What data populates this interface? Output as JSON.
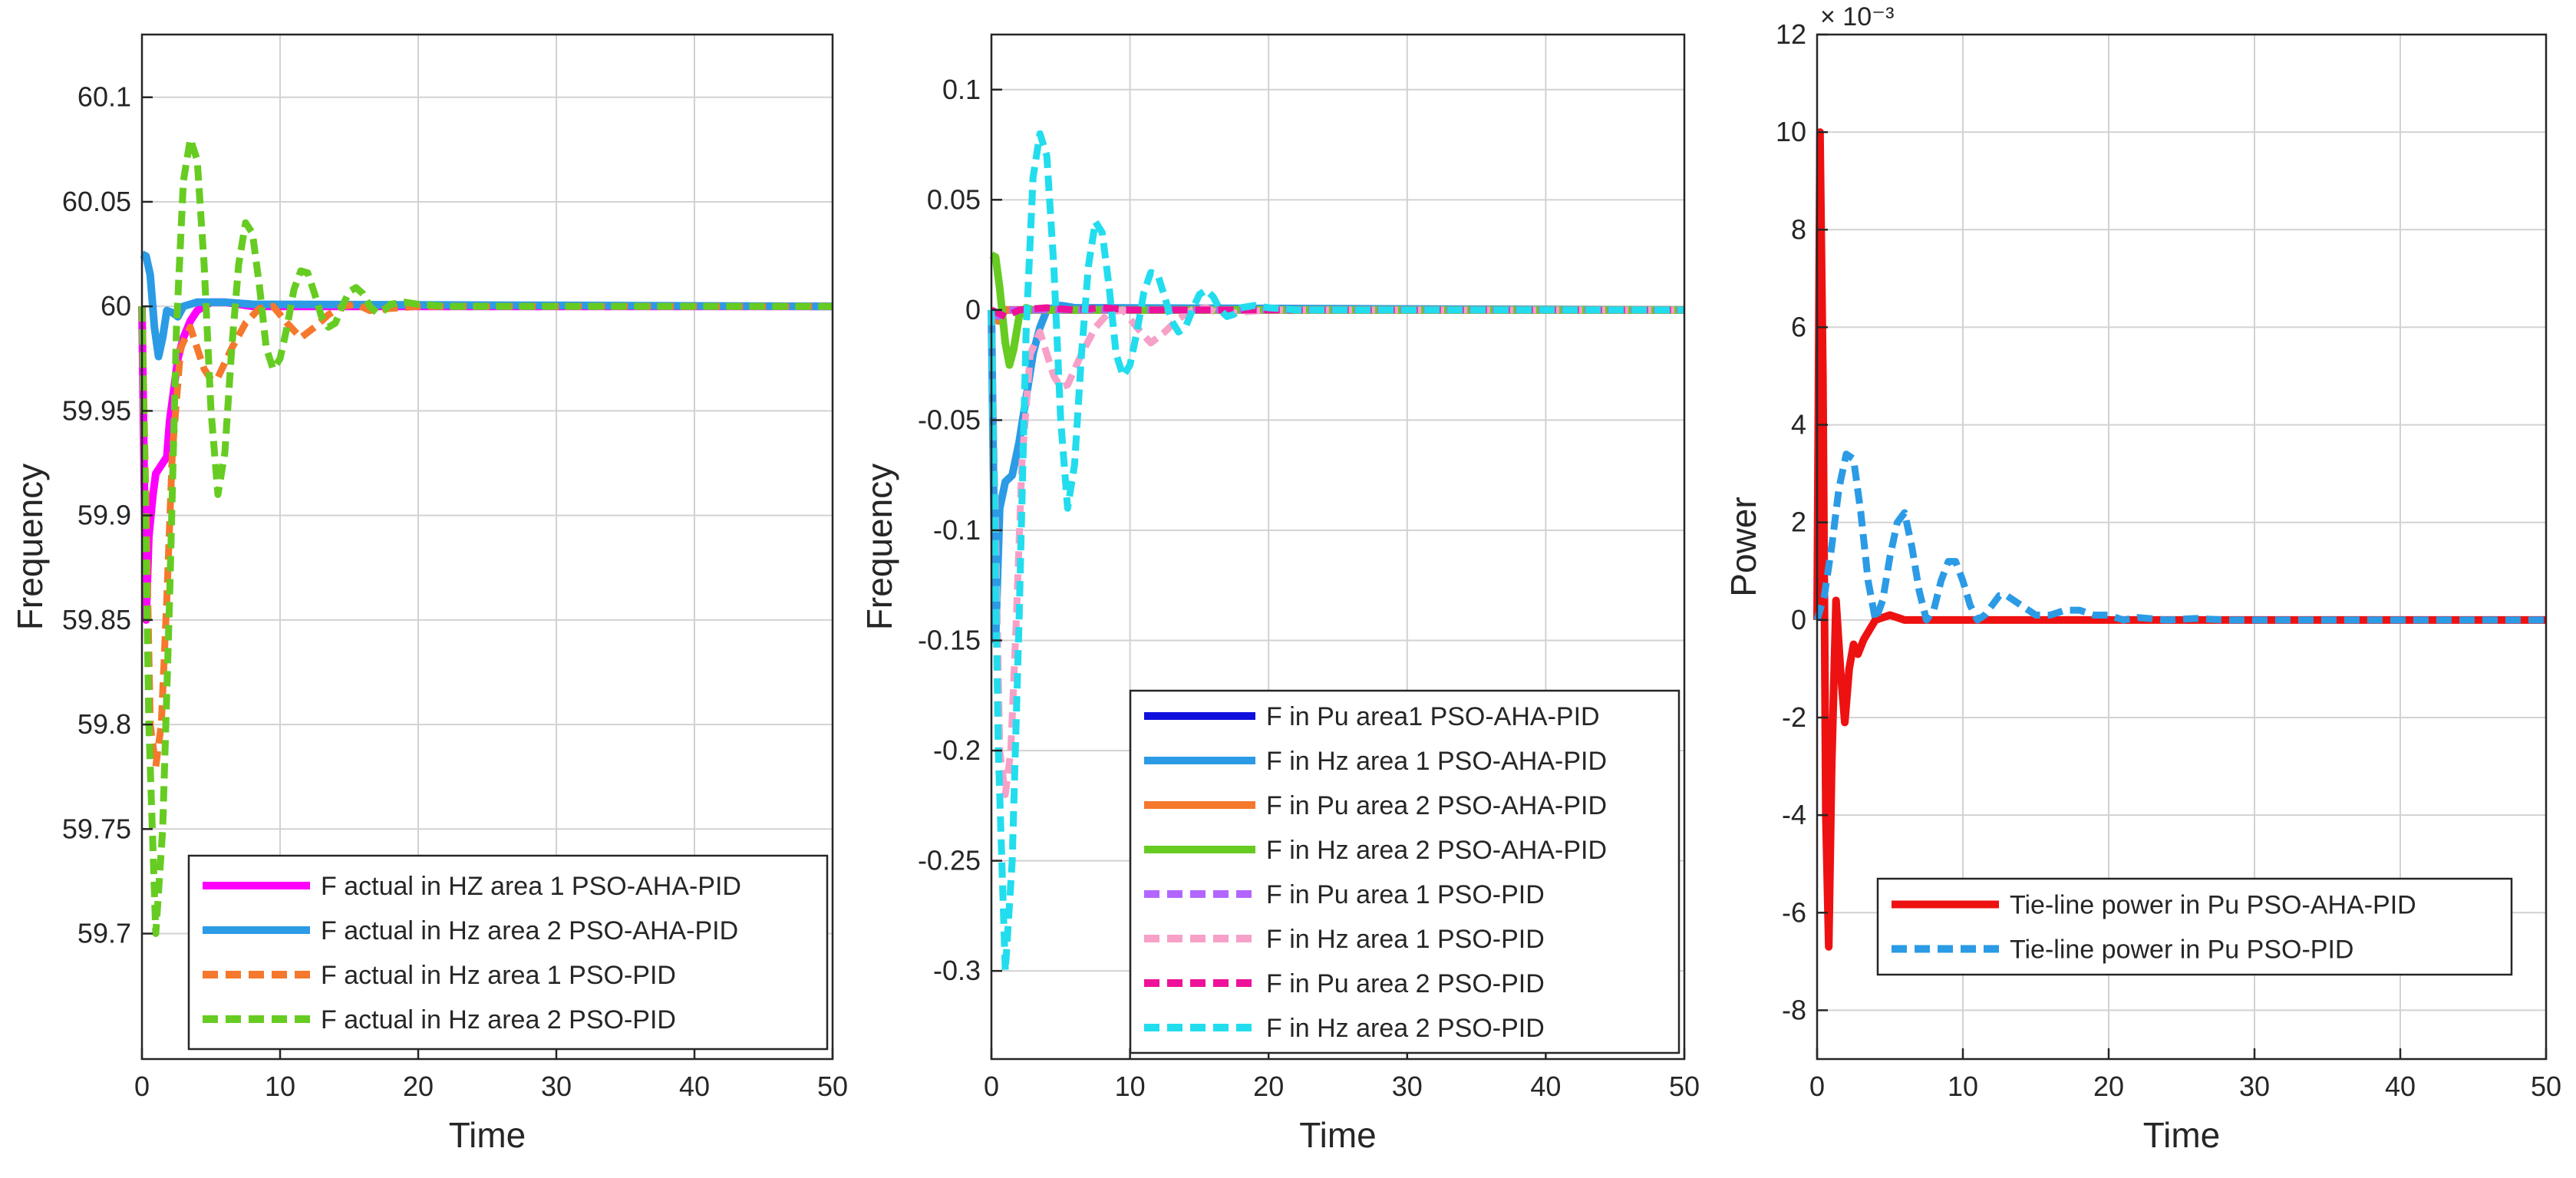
{
  "chart_data": [
    {
      "type": "line",
      "title": "",
      "xlabel": "Time",
      "ylabel": "Frequency",
      "xlim": [
        0,
        50
      ],
      "ylim": [
        59.64,
        60.13
      ],
      "grid": true,
      "legend_position": "bottom-right",
      "xticks": [
        0,
        10,
        20,
        30,
        40,
        50
      ],
      "xtick_labels": [
        "0",
        "10",
        "20",
        "30",
        "40",
        "50"
      ],
      "yticks": [
        59.7,
        59.75,
        59.8,
        59.85,
        59.9,
        59.95,
        60,
        60.05,
        60.1
      ],
      "ytick_labels": [
        "59.7",
        "59.75",
        "59.8",
        "59.85",
        "59.9",
        "59.95",
        "60",
        "60.05",
        "60.1"
      ],
      "series": [
        {
          "name": "F actual in HZ area 1 PSO-AHA-PID",
          "color": "#ff00ff",
          "style": "solid",
          "x": [
            0,
            0.3,
            0.5,
            0.8,
            1.0,
            1.5,
            1.8,
            2.0,
            2.3,
            2.6,
            3.0,
            3.5,
            4.0,
            4.5,
            5.0,
            6.0,
            7.0,
            8.0,
            50
          ],
          "y": [
            60.0,
            59.85,
            59.89,
            59.91,
            59.92,
            59.925,
            59.928,
            59.945,
            59.96,
            59.975,
            59.985,
            59.993,
            59.998,
            60.0,
            60.002,
            60.002,
            60.001,
            60.0,
            60.0
          ]
        },
        {
          "name": "F actual in Hz area 2 PSO-AHA-PID",
          "color": "#2b9be6",
          "style": "solid",
          "x": [
            0,
            0.3,
            0.6,
            0.9,
            1.2,
            1.5,
            1.8,
            2.2,
            2.6,
            3.0,
            4.0,
            6.0,
            8.0,
            50
          ],
          "y": [
            60.025,
            60.024,
            60.015,
            59.99,
            59.976,
            59.985,
            59.998,
            59.997,
            59.995,
            60.0,
            60.002,
            60.002,
            60.001,
            60.0
          ]
        },
        {
          "name": "F actual in Hz area 1 PSO-PID",
          "color": "#f5782d",
          "style": "dashed",
          "x": [
            0,
            0.3,
            0.6,
            1.0,
            1.4,
            1.8,
            2.2,
            2.8,
            3.5,
            4.5,
            5.0,
            5.5,
            6.5,
            7.5,
            8.5,
            9.5,
            10.5,
            11.5,
            12.5,
            13.5,
            14.5,
            15.5,
            16.5,
            18,
            20,
            50
          ],
          "y": [
            60.0,
            59.9,
            59.8,
            59.78,
            59.8,
            59.86,
            59.93,
            59.98,
            59.99,
            59.97,
            59.965,
            59.966,
            59.98,
            59.992,
            59.999,
            60.0,
            59.992,
            59.985,
            59.99,
            59.996,
            60.0,
            60.001,
            59.998,
            59.999,
            60.0,
            60.0
          ]
        },
        {
          "name": "F actual in Hz area 2 PSO-PID",
          "color": "#66cc22",
          "style": "dashed",
          "x": [
            0,
            0.5,
            1.0,
            1.5,
            2.0,
            2.5,
            3.0,
            3.5,
            4.0,
            4.5,
            5.0,
            5.5,
            6.0,
            6.5,
            7.0,
            7.5,
            8.0,
            8.5,
            9.0,
            9.5,
            10.0,
            10.5,
            11.0,
            11.5,
            12.0,
            12.5,
            13.0,
            13.5,
            14.0,
            14.5,
            15.0,
            15.5,
            16.0,
            16.5,
            17.0,
            17.5,
            18.0,
            19.0,
            20.0,
            22.0,
            24.0,
            50
          ],
          "y": [
            60.0,
            59.8,
            59.7,
            59.75,
            59.86,
            59.99,
            60.06,
            60.08,
            60.07,
            60.02,
            59.95,
            59.91,
            59.93,
            59.98,
            60.02,
            60.04,
            60.035,
            60.01,
            59.98,
            59.97,
            59.975,
            59.99,
            60.008,
            60.017,
            60.016,
            60.006,
            59.995,
            59.99,
            59.992,
            60.0,
            60.007,
            60.009,
            60.006,
            60.0,
            59.997,
            59.998,
            60.001,
            60.002,
            60.001,
            60.0,
            60.0,
            60.0
          ]
        }
      ]
    },
    {
      "type": "line",
      "title": "",
      "xlabel": "Time",
      "ylabel": "Frequency",
      "xlim": [
        0,
        50
      ],
      "ylim": [
        -0.34,
        0.125
      ],
      "grid": true,
      "legend_position": "bottom-right",
      "xticks": [
        0,
        10,
        20,
        30,
        40,
        50
      ],
      "xtick_labels": [
        "0",
        "10",
        "20",
        "30",
        "40",
        "50"
      ],
      "yticks": [
        -0.3,
        -0.25,
        -0.2,
        -0.15,
        -0.1,
        -0.05,
        0,
        0.05,
        0.1
      ],
      "ytick_labels": [
        "-0.3",
        "-0.25",
        "-0.2",
        "-0.15",
        "-0.1",
        "-0.05",
        "0",
        "0.05",
        "0.1"
      ],
      "series": [
        {
          "name": "F in Pu area1 PSO-AHA-PID",
          "color": "#1010dd",
          "style": "solid",
          "x": [
            0,
            0.3,
            0.6,
            1.0,
            2.0,
            3.0,
            50
          ],
          "y": [
            0.0,
            -0.003,
            -0.002,
            0.0,
            0.0,
            0.0,
            0.0
          ]
        },
        {
          "name": "F in Hz area 1 PSO-AHA-PID",
          "color": "#2b9be6",
          "style": "solid",
          "x": [
            0,
            0.3,
            0.6,
            1.0,
            1.5,
            2.0,
            2.5,
            3.0,
            3.5,
            4.0,
            5.0,
            6.0,
            50
          ],
          "y": [
            0.0,
            -0.15,
            -0.09,
            -0.078,
            -0.075,
            -0.06,
            -0.04,
            -0.02,
            -0.008,
            0.0,
            0.002,
            0.001,
            0.0
          ]
        },
        {
          "name": "F in Pu area 2 PSO-AHA-PID",
          "color": "#f5782d",
          "style": "solid",
          "x": [
            0,
            0.5,
            1.0,
            2.0,
            50
          ],
          "y": [
            0.0,
            -0.005,
            0.0,
            0.0,
            0.0
          ]
        },
        {
          "name": "F in Hz area 2 PSO-AHA-PID",
          "color": "#66cc22",
          "style": "solid",
          "x": [
            0,
            0.3,
            0.6,
            1.0,
            1.3,
            1.6,
            2.0,
            2.5,
            3.0,
            50
          ],
          "y": [
            0.025,
            0.024,
            0.01,
            -0.015,
            -0.025,
            -0.018,
            -0.003,
            0.001,
            0.0,
            0.0
          ]
        },
        {
          "name": "F in Pu  area 1 PSO-PID",
          "color": "#b266ff",
          "style": "dashed",
          "x": [
            0,
            0.5,
            1.0,
            2.0,
            50
          ],
          "y": [
            0.0,
            -0.003,
            0.0,
            0.0,
            0.0
          ]
        },
        {
          "name": "F in Hz  area 1 PSO-PID",
          "color": "#f7a0c8",
          "style": "dashed",
          "x": [
            0,
            0.3,
            0.6,
            1.0,
            1.4,
            1.8,
            2.2,
            2.8,
            3.5,
            4.5,
            5.0,
            5.5,
            6.5,
            7.5,
            8.5,
            9.5,
            10.5,
            11.5,
            12.5,
            13.5,
            14.5,
            15.5,
            16.5,
            18,
            20,
            50
          ],
          "y": [
            0.0,
            -0.1,
            -0.2,
            -0.22,
            -0.2,
            -0.14,
            -0.07,
            -0.02,
            -0.01,
            -0.03,
            -0.035,
            -0.034,
            -0.02,
            -0.008,
            -0.001,
            0.0,
            -0.008,
            -0.015,
            -0.01,
            -0.004,
            0.0,
            0.001,
            -0.002,
            -0.001,
            0.0,
            0.0
          ]
        },
        {
          "name": "F in Pu area 2 PSO-PID",
          "color": "#ee1199",
          "style": "dashed",
          "x": [
            0,
            1.0,
            2.0,
            4.0,
            6.0,
            8.0,
            10.0,
            50
          ],
          "y": [
            0.0,
            -0.003,
            0.0,
            0.001,
            0.0,
            0.001,
            0.0,
            0.0
          ]
        },
        {
          "name": "F in Hz area 2 PSO-PID",
          "color": "#22ddee",
          "style": "dashed",
          "x": [
            0,
            0.5,
            1.0,
            1.5,
            2.0,
            2.5,
            3.0,
            3.5,
            4.0,
            4.5,
            5.0,
            5.5,
            6.0,
            6.5,
            7.0,
            7.5,
            8.0,
            8.5,
            9.0,
            9.5,
            10.0,
            10.5,
            11.0,
            11.5,
            12.0,
            12.5,
            13.0,
            13.5,
            14.0,
            14.5,
            15.0,
            15.5,
            16.0,
            16.5,
            17.0,
            17.5,
            18.0,
            19.0,
            20.0,
            22.0,
            24.0,
            50
          ],
          "y": [
            0.0,
            -0.2,
            -0.3,
            -0.25,
            -0.14,
            -0.01,
            0.06,
            0.08,
            0.07,
            0.02,
            -0.05,
            -0.09,
            -0.07,
            -0.02,
            0.02,
            0.04,
            0.035,
            0.01,
            -0.02,
            -0.03,
            -0.025,
            -0.01,
            0.008,
            0.017,
            0.016,
            0.006,
            -0.005,
            -0.01,
            -0.008,
            0.0,
            0.007,
            0.009,
            0.006,
            0.0,
            -0.003,
            -0.002,
            0.001,
            0.002,
            0.001,
            0.0,
            0.0,
            0.0
          ]
        }
      ]
    },
    {
      "type": "line",
      "title": "",
      "xlabel": "Time",
      "ylabel": "Power",
      "y_exponent": "× 10⁻³",
      "xlim": [
        0,
        50
      ],
      "ylim": [
        -0.009,
        0.012
      ],
      "grid": true,
      "legend_position": "bottom-right",
      "xticks": [
        0,
        10,
        20,
        30,
        40,
        50
      ],
      "xtick_labels": [
        "0",
        "10",
        "20",
        "30",
        "40",
        "50"
      ],
      "yticks": [
        -0.008,
        -0.006,
        -0.004,
        -0.002,
        0,
        0.002,
        0.004,
        0.006,
        0.008,
        0.01,
        0.012
      ],
      "ytick_labels": [
        "-8",
        "-6",
        "-4",
        "-2",
        "0",
        "2",
        "4",
        "6",
        "8",
        "10",
        "12"
      ],
      "series": [
        {
          "name": "Tie-line power  in Pu PSO-AHA-PID",
          "color": "#ee1111",
          "style": "solid",
          "x": [
            0,
            0.2,
            0.4,
            0.6,
            0.8,
            1.0,
            1.3,
            1.6,
            1.9,
            2.2,
            2.5,
            2.8,
            3.2,
            3.6,
            4.0,
            5.0,
            6.0,
            50
          ],
          "y": [
            0.0,
            0.01,
            0.005,
            -0.004,
            -0.0067,
            -0.003,
            0.0004,
            -0.001,
            -0.0021,
            -0.001,
            -0.0005,
            -0.0007,
            -0.0004,
            -0.0002,
            0.0,
            0.0001,
            0.0,
            0.0
          ]
        },
        {
          "name": "Tie-line power in Pu PSO-PID",
          "color": "#2b9be6",
          "style": "dashed",
          "x": [
            0,
            0.5,
            1.0,
            1.5,
            2.0,
            2.5,
            3.0,
            3.5,
            4.0,
            4.5,
            5.0,
            5.5,
            6.0,
            6.5,
            7.0,
            7.5,
            8.0,
            8.5,
            9.0,
            9.5,
            10.0,
            10.5,
            11.0,
            11.5,
            12.0,
            12.5,
            13.0,
            14.0,
            15.0,
            16.0,
            17.0,
            18.0,
            19.0,
            20.0,
            21.0,
            22.0,
            24.0,
            26.0,
            28.0,
            50
          ],
          "y": [
            0.0,
            0.0005,
            0.0015,
            0.0027,
            0.0034,
            0.0033,
            0.0022,
            0.0008,
            0.0,
            0.0004,
            0.0013,
            0.002,
            0.0022,
            0.0015,
            0.0006,
            0.0,
            0.0002,
            0.0008,
            0.0012,
            0.0012,
            0.0008,
            0.0003,
            0.0,
            0.0001,
            0.0003,
            0.0005,
            0.0005,
            0.0003,
            0.0001,
            0.0001,
            0.0002,
            0.0002,
            0.0001,
            0.0001,
            0.0,
            5e-05,
            0.0,
            3e-05,
            0.0,
            0.0
          ]
        }
      ]
    }
  ]
}
